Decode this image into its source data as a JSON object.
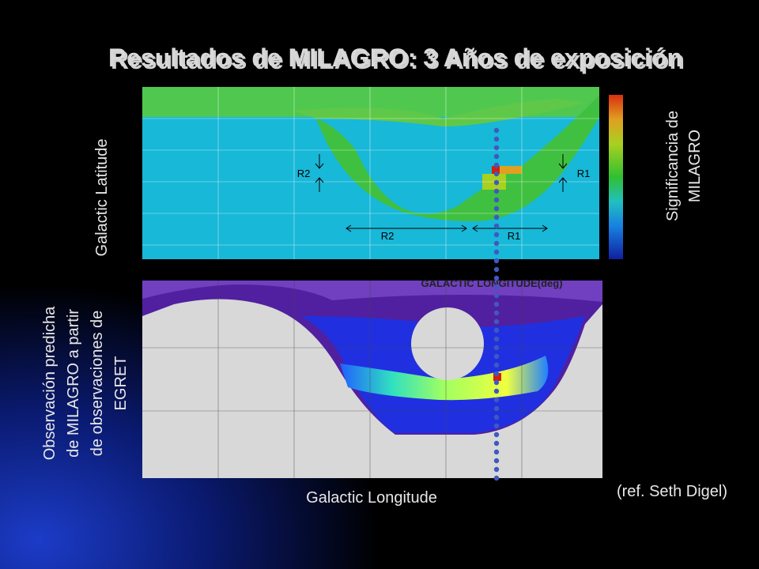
{
  "title": "Resultados de MILAGRO: 3 Años de exposición",
  "top_map": {
    "y_label": "Galactic Latitude",
    "region_labels": [
      "R2",
      "R1",
      "R2",
      "R1"
    ],
    "axis_caption": "GALACTIC LONGITUDE(deg)"
  },
  "colorbar": {
    "label_lines": [
      "Significancia de",
      "MILAGRO"
    ]
  },
  "bottom_map": {
    "label_lines": [
      "Observación predicha",
      "de MILAGRO a partir",
      "de observaciones de",
      "EGRET"
    ]
  },
  "x_label": "Galactic Longitude",
  "reference": "(ref. Seth Digel)"
}
